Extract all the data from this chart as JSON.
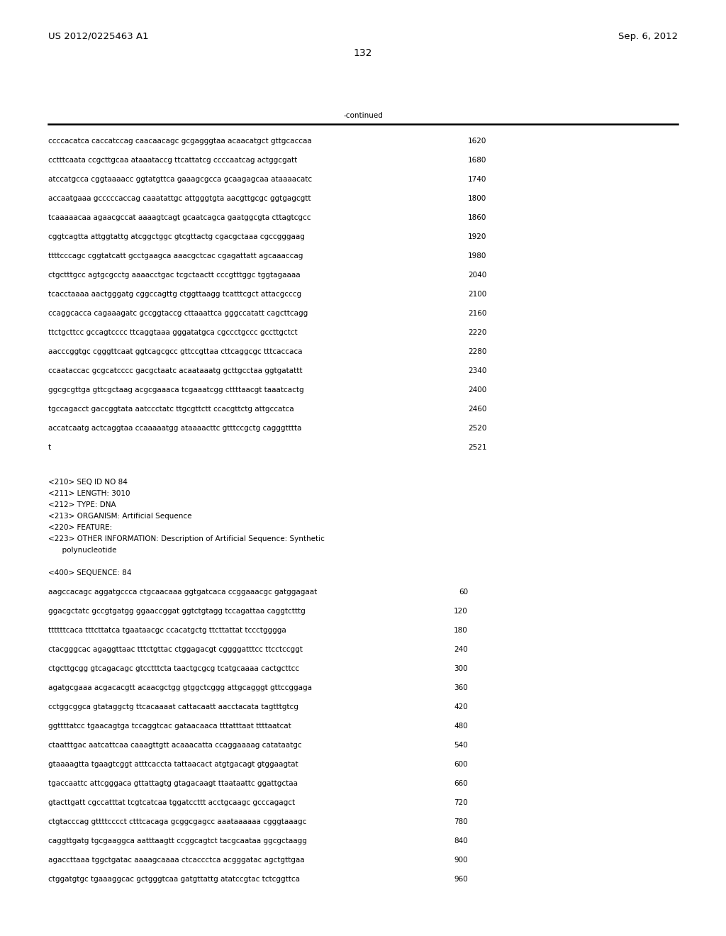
{
  "header_left": "US 2012/0225463 A1",
  "header_right": "Sep. 6, 2012",
  "page_number": "132",
  "continued_label": "-continued",
  "background_color": "#ffffff",
  "text_color": "#000000",
  "font_size_header": 9.5,
  "font_size_body": 7.5,
  "font_size_page": 10,
  "sequence_lines_top": [
    [
      "ccccacatca caccatccag caacaacagc gcgagggtaa acaacatgct gttgcaccaa",
      "1620"
    ],
    [
      "cctttcaata ccgcttgcaa ataaataccg ttcattatcg ccccaatcag actggcgatt",
      "1680"
    ],
    [
      "atccatgcca cggtaaaacc ggtatgttca gaaagcgcca gcaagagcaa ataaaacatc",
      "1740"
    ],
    [
      "accaatgaaa gcccccaccag caaatattgc attgggtgta aacgttgcgc ggtgagcgtt",
      "1800"
    ],
    [
      "tcaaaaacaa agaacgccat aaaagtcagt gcaatcagca gaatggcgta cttagtcgcc",
      "1860"
    ],
    [
      "cggtcagtta attggtattg atcggctggc gtcgttactg cgacgctaaa cgccgggaag",
      "1920"
    ],
    [
      "ttttcccagc cggtatcatt gcctgaagca aaacgctcac cgagattatt agcaaaccag",
      "1980"
    ],
    [
      "ctgctttgcc agtgcgcctg aaaacctgac tcgctaactt cccgtttggc tggtagaaaa",
      "2040"
    ],
    [
      "tcacctaaaa aactgggatg cggccagttg ctggttaagg tcatttcgct attacgcccg",
      "2100"
    ],
    [
      "ccaggcacca cagaaagatc gccggtaccg cttaaattca gggccatatt cagcttcagg",
      "2160"
    ],
    [
      "ttctgcttcc gccagtcccc ttcaggtaaa gggatatgca cgccctgccc gccttgctct",
      "2220"
    ],
    [
      "aacccggtgc cgggttcaat ggtcagcgcc gttccgttaa cttcaggcgc tttcaccaca",
      "2280"
    ],
    [
      "ccaataccac gcgcatcccc gacgctaatc acaataaatg gcttgcctaa ggtgatattt",
      "2340"
    ],
    [
      "ggcgcgttga gttcgctaag acgcgaaaca tcgaaatcgg cttttaacgt taaatcactg",
      "2400"
    ],
    [
      "tgccagacct gaccggtata aatccctatc ttgcgttctt ccacgttctg attgccatca",
      "2460"
    ],
    [
      "accatcaatg actcaggtaa ccaaaaatgg ataaaacttc gtttccgctg cagggtttta",
      "2520"
    ],
    [
      "t",
      "2521"
    ]
  ],
  "metadata_lines": [
    "<210> SEQ ID NO 84",
    "<211> LENGTH: 3010",
    "<212> TYPE: DNA",
    "<213> ORGANISM: Artificial Sequence",
    "<220> FEATURE:",
    "<223> OTHER INFORMATION: Description of Artificial Sequence: Synthetic",
    "      polynucleotide"
  ],
  "sequence_label": "<400> SEQUENCE: 84",
  "sequence_lines_bottom": [
    [
      "aagccacagc aggatgccca ctgcaacaaa ggtgatcaca ccggaaacgc gatggagaat",
      "60"
    ],
    [
      "ggacgctatc gccgtgatgg ggaaccggat ggtctgtagg tccagattaa caggtctttg",
      "120"
    ],
    [
      "ttttttcaca tttcttatca tgaataacgc ccacatgctg ttcttattat tccctgggga",
      "180"
    ],
    [
      "ctacgggcac agaggttaac tttctgttac ctggagacgt cggggatttcc ttcctccggt",
      "240"
    ],
    [
      "ctgcttgcgg gtcagacagc gtcctttcta taactgcgcg tcatgcaaaa cactgcttcc",
      "300"
    ],
    [
      "agatgcgaaa acgacacgtt acaacgctgg gtggctcggg attgcagggt gttccggaga",
      "360"
    ],
    [
      "cctggcggca gtataggctg ttcacaaaat cattacaatt aacctacata tagtttgtcg",
      "420"
    ],
    [
      "ggttttatcc tgaacagtga tccaggtcac gataacaaca tttatttaat ttttaatcat",
      "480"
    ],
    [
      "ctaatttgac aatcattcaa caaagttgtt acaaacatta ccaggaaaag catataatgc",
      "540"
    ],
    [
      "gtaaaagtta tgaagtcggt atttcaccta tattaacact atgtgacagt gtggaagtat",
      "600"
    ],
    [
      "tgaccaattc attcgggaca gttattagtg gtagacaagt ttaataattc ggattgctaa",
      "660"
    ],
    [
      "gtacttgatt cgccatttat tcgtcatcaa tggatccttt acctgcaagc gcccagagct",
      "720"
    ],
    [
      "ctgtacccag gttttcccct ctttcacaga gcggcgagcc aaataaaaaa cgggtaaagc",
      "780"
    ],
    [
      "caggttgatg tgcgaaggca aatttaagtt ccggcagtct tacgcaataa ggcgctaagg",
      "840"
    ],
    [
      "agaccttaaa tggctgatac aaaagcaaaa ctcaccctca acgggatac agctgttgaa",
      "900"
    ],
    [
      "ctggatgtgc tgaaaggcac gctgggtcaa gatgttattg atatccgtac tctcggttca",
      "960"
    ]
  ]
}
